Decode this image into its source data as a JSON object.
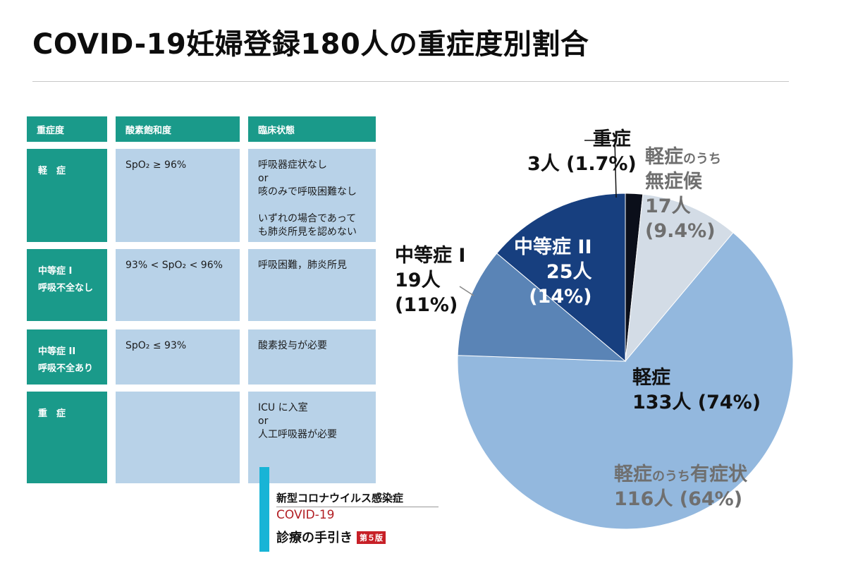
{
  "title": "COVID-19妊婦登録180人の重症度別割合",
  "table": {
    "headers": [
      "重症度",
      "酸素飽和度",
      "臨床状態"
    ],
    "rows": [
      {
        "severity": "軽　症",
        "spo2": "SpO₂ ≥ 96%",
        "clinical": "呼吸器症状なし\nor\n咳のみで呼吸困難なし\n\nいずれの場合であって\nも肺炎所見を認めない"
      },
      {
        "severity": "中等症 I\n呼吸不全なし",
        "spo2": "93% < SpO₂ < 96%",
        "clinical": "呼吸困難，肺炎所見"
      },
      {
        "severity": "中等症 II\n呼吸不全あり",
        "spo2": "SpO₂ ≤ 93%",
        "clinical": "酸素投与が必要"
      },
      {
        "severity": "重　症",
        "spo2": "",
        "clinical": "ICU に入室\nor\n人工呼吸器が必要"
      }
    ]
  },
  "booklet": {
    "line1": "新型コロナウイルス感染症",
    "line2": "COVID-19",
    "line3": "診療の手引き",
    "edition": "第５版"
  },
  "chart_data": {
    "type": "pie",
    "title": "",
    "total": 180,
    "slices": [
      {
        "name": "重症",
        "count": 3,
        "percent": 1.7,
        "color": "#0b0f1a"
      },
      {
        "name": "軽症のうち無症候",
        "count": 17,
        "percent": 9.4,
        "color": "#d3dce6"
      },
      {
        "name": "軽症のうち有症状",
        "count": 116,
        "percent": 64,
        "color": "#93b8de"
      },
      {
        "name": "中等症 I",
        "count": 19,
        "percent": 11,
        "color": "#5a84b6"
      },
      {
        "name": "中等症 II",
        "count": 25,
        "percent": 14,
        "color": "#173f7f"
      }
    ],
    "labels": {
      "severe": [
        "重症",
        "3人 (1.7%)"
      ],
      "asym": {
        "head": "軽症",
        "head_small": "のうち",
        "line2": "無症候",
        "line3": "17人",
        "line4": "(9.4%)"
      },
      "mod2": [
        "中等症 II",
        "25人",
        "(14%)"
      ],
      "mod1": [
        "中等症 I",
        "19人",
        "(11%)"
      ],
      "mild": [
        "軽症",
        "133人 (74%)"
      ],
      "sym": {
        "head": "軽症",
        "head_small": "のうち",
        "head2": "有症状",
        "line2": "116人 (64%)"
      }
    }
  }
}
